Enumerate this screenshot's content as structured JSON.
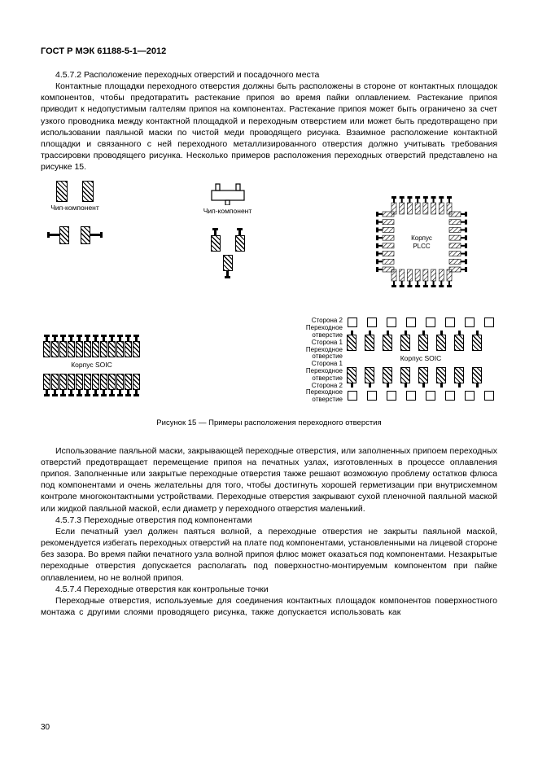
{
  "header": "ГОСТ Р МЭК 61188-5-1—2012",
  "s4572_title": "4.5.7.2  Расположение переходных отверстий и посадочного места",
  "p1": "Контактные площадки переходного отверстия должны быть расположены в стороне от контактных площадок компонентов, чтобы предотвратить растекание припоя во время пайки оплавлением. Растекание припоя приводит к недопустимым галтелям припоя на компонентах. Растекание припоя может быть ограничено за счет узкого проводника между контактной площадкой и переходным отверстием или может быть предотвращено при использовании паяльной маски по чистой меди проводящего рисунка. Взаимное расположение контактной площадки и связанного с ней переходного металлизированного отверстия должно учитывать требования трассировки проводящего рисунка. Несколько примеров расположения переходных отверстий представлено на рисунке 15.",
  "labels": {
    "chip": "Чип-компонент",
    "plcc": "Корпус\nPLCC",
    "soic": "Корпус SOIC",
    "side2": "Сторона 2\nПереходное\nотверстие",
    "side1": "Сторона 1\nПереходное\nотверстие"
  },
  "fig_caption": "Рисунок 15 — Примеры расположения переходного отверстия",
  "p2": "Использование паяльной маски, закрывающей переходные отверстия, или заполненных припоем переходных отверстий предотвращает перемещение припоя на печатных узлах, изготовленных в процессе оплавления припоя. Заполненные или закрытые переходные отверстия также решают возможную проблему остатков флюса под компонентами и очень желательны для того, чтобы достигнуть хорошей герметизации при внутрисхемном контроле многоконтактными устройствами. Переходные отверстия закрывают сухой пленочной паяльной маской или жидкой паяльной маской, если диаметр у переходного отверстия маленький.",
  "s4573_title": "4.5.7.3  Переходные отверстия под компонентами",
  "p3": "Если печатный узел должен паяться волной, а переходные отверстия не закрыты паяльной маской, рекомендуется избегать переходных отверстий на плате под компонентами, установленными на лицевой стороне без зазора. Во время пайки печатного узла волной припоя флюс может оказаться под компонентами. Незакрытые переходные отверстия допускается располагать под поверхностно-монтируемым компонентом при пайке оплавлением, но не волной припоя.",
  "s4574_title": "4.5.7.4  Переходные отверстия как контрольные точки",
  "p4": "Переходные отверстия, используемые для соединения контактных площадок компонентов поверхностного монтажа с другими слоями проводящего рисунка, также допускается использовать как",
  "page_num": "30",
  "colors": {
    "ink": "#000000",
    "bg": "#ffffff"
  },
  "figure": {
    "chip_pad": {
      "w": 12,
      "h": 24
    },
    "soic_pins": 12,
    "right_soic_pins": 8,
    "plcc_pins_per_side": 8
  }
}
